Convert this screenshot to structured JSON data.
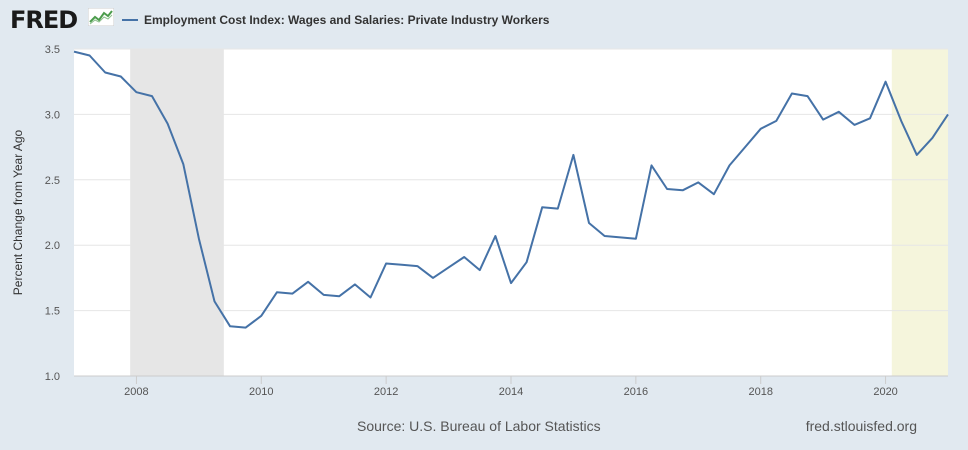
{
  "header": {
    "logo_text": "FRED",
    "legend_label": "Employment Cost Index: Wages and Salaries: Private Industry Workers"
  },
  "footer": {
    "source": "Source: U.S. Bureau of Labor Statistics",
    "site": "fred.stlouisfed.org"
  },
  "colors": {
    "background": "#e1e9f0",
    "plot_background": "#ffffff",
    "series": "#4572a7",
    "recession_shade": "#e6e6e6",
    "highlight_shade": "#f5f5dc"
  },
  "icons": {
    "logo": "line-chart-icon"
  },
  "chart_data": {
    "type": "line",
    "title": "",
    "xlabel": "",
    "ylabel": "Percent Change from Year Ago",
    "ylim": [
      1.0,
      3.5
    ],
    "xlim": [
      2007.0,
      2021.0
    ],
    "yticks": [
      1.0,
      1.5,
      2.0,
      2.5,
      3.0,
      3.5
    ],
    "ytick_labels": [
      "1.0",
      "1.5",
      "2.0",
      "2.5",
      "3.0",
      "3.5"
    ],
    "xticks": [
      2008,
      2010,
      2012,
      2014,
      2016,
      2018,
      2020
    ],
    "xtick_labels": [
      "2008",
      "2010",
      "2012",
      "2014",
      "2016",
      "2018",
      "2020"
    ],
    "grid": true,
    "legend": "top-left",
    "shaded_periods": [
      {
        "kind": "recession",
        "start": 2007.9,
        "end": 2009.4
      },
      {
        "kind": "highlight",
        "start": 2020.1,
        "end": 2021.0
      }
    ],
    "series": [
      {
        "name": "Employment Cost Index: Wages and Salaries: Private Industry Workers",
        "x": [
          2007.0,
          2007.25,
          2007.5,
          2007.75,
          2008.0,
          2008.25,
          2008.5,
          2008.75,
          2009.0,
          2009.25,
          2009.5,
          2009.75,
          2010.0,
          2010.25,
          2010.5,
          2010.75,
          2011.0,
          2011.25,
          2011.5,
          2011.75,
          2012.0,
          2012.25,
          2012.5,
          2012.75,
          2013.0,
          2013.25,
          2013.5,
          2013.75,
          2014.0,
          2014.25,
          2014.5,
          2014.75,
          2015.0,
          2015.25,
          2015.5,
          2015.75,
          2016.0,
          2016.25,
          2016.5,
          2016.75,
          2017.0,
          2017.25,
          2017.5,
          2017.75,
          2018.0,
          2018.25,
          2018.5,
          2018.75,
          2019.0,
          2019.25,
          2019.5,
          2019.75,
          2020.0,
          2020.25,
          2020.5,
          2020.75,
          2021.0
        ],
        "values": [
          3.48,
          3.45,
          3.32,
          3.29,
          3.17,
          3.14,
          2.93,
          2.62,
          2.05,
          1.57,
          1.38,
          1.37,
          1.46,
          1.64,
          1.63,
          1.72,
          1.62,
          1.61,
          1.7,
          1.6,
          1.86,
          1.85,
          1.84,
          1.75,
          1.83,
          1.91,
          1.81,
          2.07,
          1.71,
          1.87,
          2.29,
          2.28,
          2.69,
          2.17,
          2.07,
          2.06,
          2.05,
          2.61,
          2.43,
          2.42,
          2.48,
          2.39,
          2.61,
          2.75,
          2.89,
          2.95,
          3.16,
          3.14,
          2.96,
          3.02,
          2.92,
          2.97,
          3.25,
          2.95,
          2.69,
          2.82,
          3.0
        ]
      }
    ]
  }
}
